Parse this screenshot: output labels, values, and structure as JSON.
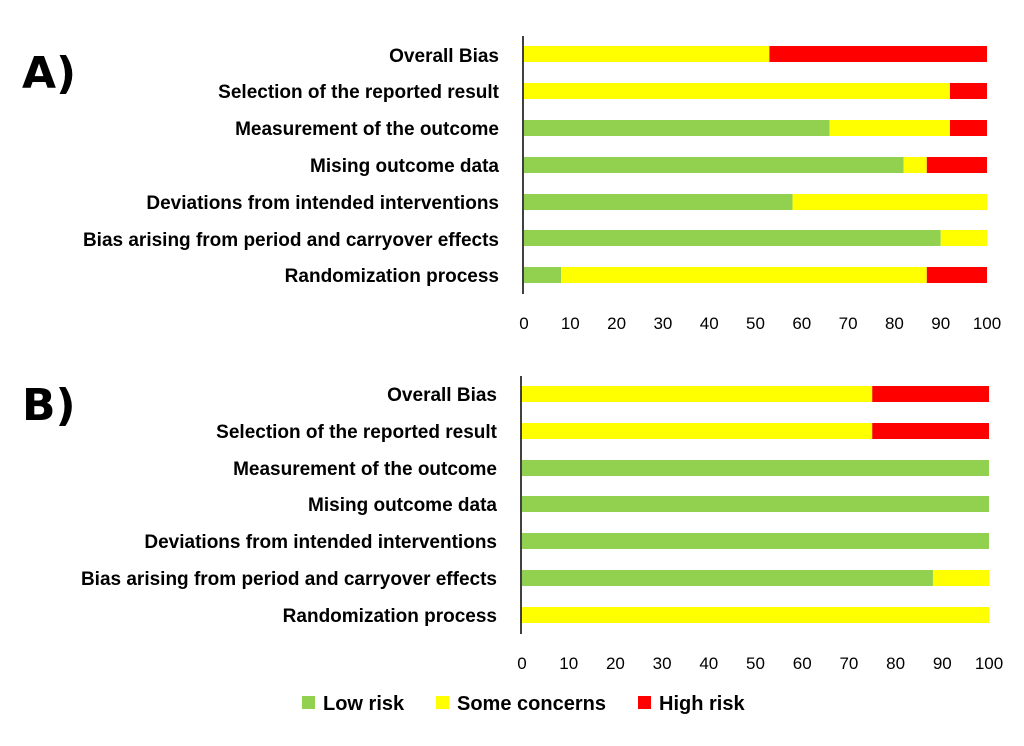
{
  "chart_data": [
    {
      "type": "bar",
      "orientation": "horizontal",
      "stacked": true,
      "panel_label": "A)",
      "categories": [
        "Overall Bias",
        "Selection of the reported result",
        "Measurement of the outcome",
        "Mising outcome data",
        "Deviations from intended interventions",
        "Bias arising from period and carryover effects",
        "Randomization process"
      ],
      "series": [
        {
          "name": "Low risk",
          "values": [
            0,
            0,
            66,
            82,
            58,
            90,
            8
          ]
        },
        {
          "name": "Some concerns",
          "values": [
            53,
            92,
            26,
            5,
            42,
            10,
            79
          ]
        },
        {
          "name": "High risk",
          "values": [
            47,
            8,
            8,
            13,
            0,
            0,
            13
          ]
        }
      ],
      "xlim": [
        0,
        100
      ],
      "xticks": [
        "0",
        "10",
        "20",
        "30",
        "40",
        "50",
        "60",
        "70",
        "80",
        "90",
        "100"
      ]
    },
    {
      "type": "bar",
      "orientation": "horizontal",
      "stacked": true,
      "panel_label": "B)",
      "categories": [
        "Overall Bias",
        "Selection of the reported result",
        "Measurement of the outcome",
        "Mising outcome data",
        "Deviations from intended interventions",
        "Bias arising from period and carryover effects",
        "Randomization process"
      ],
      "series": [
        {
          "name": "Low risk",
          "values": [
            0,
            0,
            100,
            100,
            100,
            88,
            0
          ]
        },
        {
          "name": "Some concerns",
          "values": [
            75,
            75,
            0,
            0,
            0,
            12,
            100
          ]
        },
        {
          "name": "High risk",
          "values": [
            25,
            25,
            0,
            0,
            0,
            0,
            0
          ]
        }
      ],
      "xlim": [
        0,
        100
      ],
      "xticks": [
        "0",
        "10",
        "20",
        "30",
        "40",
        "50",
        "60",
        "70",
        "80",
        "90",
        "100"
      ]
    }
  ],
  "legend": [
    {
      "name": "Low risk",
      "color": "#92D050"
    },
    {
      "name": "Some concerns",
      "color": "#FFFF00"
    },
    {
      "name": "High risk",
      "color": "#FF0000"
    }
  ],
  "colors": {
    "Low risk": "#92D050",
    "Some concerns": "#FFFF00",
    "High risk": "#FF0000"
  }
}
